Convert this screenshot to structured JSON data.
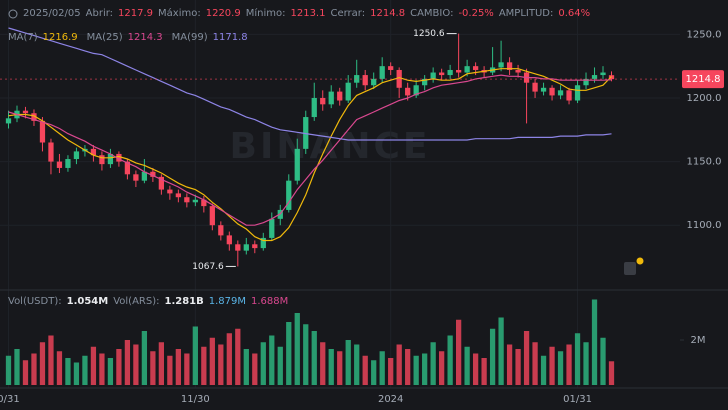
{
  "header": {
    "date": "2025/02/05",
    "labels": [
      "Abrir:",
      "Máximo:",
      "Mínimo:",
      "Cerrar:",
      "CAMBIO:",
      "AMPLITUD:"
    ],
    "change": "-0.25%",
    "amplitude": "0.64%"
  },
  "watermark": "BINANCE",
  "chart_data": {
    "type": "candlestick",
    "xlim": [
      -1,
      72
    ],
    "xticks": [
      {
        "value": 0,
        "label": "0/31"
      },
      {
        "value": 22,
        "label": "11/30"
      },
      {
        "value": 45,
        "label": "2024"
      },
      {
        "value": 67,
        "label": "01/31"
      }
    ],
    "ylim": [
      1053,
      1277
    ],
    "yticks": [
      {
        "value": 1100,
        "label": "1100.0"
      },
      {
        "value": 1150,
        "label": "1150.0"
      },
      {
        "value": 1200,
        "label": "1200.0"
      },
      {
        "value": 1250,
        "label": "1250.0"
      }
    ],
    "grid": true,
    "up_color": "#2ebd85",
    "down_color": "#f6465d",
    "open": [
      1180,
      1184,
      1190,
      1188,
      1182,
      1165,
      1150,
      1145,
      1152,
      1158,
      1160,
      1155,
      1148,
      1156,
      1150,
      1140,
      1135,
      1142,
      1138,
      1128,
      1125,
      1122,
      1118,
      1120,
      1115,
      1100,
      1092,
      1085,
      1080,
      1085,
      1082,
      1090,
      1105,
      1112,
      1135,
      1160,
      1185,
      1200,
      1195,
      1205,
      1198,
      1212,
      1218,
      1210,
      1215,
      1225,
      1222,
      1208,
      1202,
      1210,
      1215,
      1220,
      1218,
      1222,
      1220,
      1225,
      1222,
      1220,
      1224,
      1228,
      1222,
      1220,
      1212,
      1205,
      1208,
      1202,
      1206,
      1198,
      1210,
      1215,
      1218,
      1217.9
    ],
    "high": [
      1190,
      1194,
      1193,
      1191,
      1185,
      1168,
      1156,
      1155,
      1161,
      1163,
      1163,
      1158,
      1160,
      1158,
      1152,
      1143,
      1152,
      1145,
      1140,
      1131,
      1128,
      1125,
      1124,
      1123,
      1117,
      1103,
      1095,
      1088,
      1090,
      1088,
      1094,
      1110,
      1116,
      1140,
      1168,
      1190,
      1212,
      1206,
      1210,
      1208,
      1218,
      1230,
      1222,
      1220,
      1232,
      1228,
      1224,
      1212,
      1214,
      1218,
      1224,
      1223,
      1226,
      1250.6,
      1230,
      1228,
      1225,
      1240,
      1245,
      1232,
      1226,
      1223,
      1215,
      1212,
      1210,
      1210,
      1208,
      1214,
      1220,
      1224,
      1225,
      1220.9
    ],
    "low": [
      1176,
      1181,
      1184,
      1178,
      1158,
      1140,
      1141,
      1142,
      1148,
      1154,
      1150,
      1143,
      1145,
      1146,
      1136,
      1130,
      1133,
      1134,
      1124,
      1120,
      1118,
      1114,
      1115,
      1110,
      1096,
      1088,
      1080,
      1067.6,
      1077,
      1078,
      1080,
      1088,
      1100,
      1110,
      1132,
      1156,
      1182,
      1190,
      1192,
      1194,
      1196,
      1208,
      1206,
      1207,
      1212,
      1218,
      1200,
      1198,
      1200,
      1206,
      1212,
      1214,
      1215,
      1216,
      1217,
      1218,
      1216,
      1218,
      1221,
      1218,
      1216,
      1180,
      1200,
      1202,
      1198,
      1199,
      1195,
      1196,
      1207,
      1212,
      1215,
      1213.1
    ],
    "close": [
      1184,
      1190,
      1188,
      1182,
      1165,
      1150,
      1145,
      1152,
      1158,
      1160,
      1155,
      1148,
      1156,
      1150,
      1140,
      1135,
      1142,
      1138,
      1128,
      1125,
      1122,
      1118,
      1120,
      1115,
      1100,
      1092,
      1085,
      1080,
      1085,
      1082,
      1090,
      1105,
      1112,
      1135,
      1160,
      1185,
      1200,
      1195,
      1205,
      1198,
      1212,
      1218,
      1210,
      1215,
      1225,
      1222,
      1208,
      1202,
      1210,
      1215,
      1220,
      1218,
      1222,
      1220,
      1225,
      1222,
      1220,
      1224,
      1228,
      1222,
      1220,
      1212,
      1205,
      1208,
      1202,
      1206,
      1198,
      1210,
      1215,
      1218,
      1220,
      1214.8
    ],
    "series": [
      {
        "name": "MA(7)",
        "color": "#f0b90b",
        "values": [
          1186,
          1187,
          1187,
          1186,
          1182,
          1177,
          1172,
          1167,
          1163,
          1159,
          1155,
          1153,
          1153,
          1154,
          1152,
          1149,
          1147,
          1144,
          1141,
          1137,
          1133,
          1130,
          1128,
          1124,
          1118,
          1113,
          1107,
          1101,
          1097,
          1091,
          1088,
          1088,
          1091,
          1098,
          1110,
          1124,
          1141,
          1156,
          1170,
          1183,
          1194,
          1202,
          1205,
          1208,
          1212,
          1214,
          1216,
          1214,
          1213,
          1214,
          1215,
          1214,
          1214,
          1215,
          1219,
          1220,
          1221,
          1222,
          1223,
          1223,
          1223,
          1221,
          1219,
          1217,
          1214,
          1211,
          1207,
          1206,
          1206,
          1208,
          1210,
          1216.9
        ]
      },
      {
        "name": "MA(25)",
        "color": "#d9488f",
        "values": [
          1189,
          1187,
          1185,
          1183,
          1181,
          1179,
          1176,
          1172,
          1169,
          1166,
          1162,
          1159,
          1156,
          1152,
          1149,
          1146,
          1142,
          1139,
          1136,
          1133,
          1130,
          1126,
          1123,
          1120,
          1116,
          1112,
          1108,
          1104,
          1100,
          1100,
          1102,
          1105,
          1109,
          1118,
          1128,
          1136,
          1144,
          1151,
          1159,
          1167,
          1175,
          1183,
          1186,
          1189,
          1192,
          1195,
          1198,
          1200,
          1203,
          1205,
          1208,
          1210,
          1211,
          1212,
          1213,
          1215,
          1216,
          1217,
          1218,
          1217,
          1217,
          1216,
          1216,
          1215,
          1215,
          1214,
          1214,
          1214,
          1214,
          1214,
          1214,
          1214.3
        ]
      },
      {
        "name": "MA(99)",
        "color": "#8d84e6",
        "values": [
          1255,
          1253,
          1251,
          1249,
          1247,
          1245,
          1243,
          1241,
          1239,
          1237,
          1235,
          1234,
          1231,
          1228,
          1225,
          1222,
          1219,
          1216,
          1213,
          1210,
          1207,
          1204,
          1202,
          1199,
          1196,
          1193,
          1191,
          1188,
          1185,
          1183,
          1180,
          1177,
          1175,
          1174,
          1173,
          1172,
          1171,
          1170,
          1169,
          1168,
          1167,
          1167,
          1167,
          1167,
          1167,
          1167,
          1167,
          1167,
          1167,
          1167,
          1167,
          1167,
          1167,
          1167,
          1167,
          1168,
          1168,
          1168,
          1168,
          1168,
          1169,
          1169,
          1169,
          1169,
          1169,
          1170,
          1170,
          1170,
          1171,
          1171,
          1171,
          1171.8
        ]
      }
    ],
    "volume": {
      "ylim": [
        0,
        4000000
      ],
      "yticks": [
        {
          "value": 2000000,
          "label": "2M"
        }
      ],
      "header": [
        {
          "label": "Vol(USDT):",
          "value": "1.054M"
        },
        {
          "label": "Vol(ARS):",
          "value": "1.281B"
        }
      ],
      "ma_labels": [
        {
          "text": "1.879M",
          "color": "#5ab4e6"
        },
        {
          "text": "1.688M",
          "color": "#d9488f"
        }
      ],
      "values": [
        1300000,
        1600000,
        1100000,
        1400000,
        1900000,
        2200000,
        1500000,
        1200000,
        1000000,
        1300000,
        1700000,
        1400000,
        1200000,
        1600000,
        2000000,
        1800000,
        2400000,
        1500000,
        1900000,
        1300000,
        1600000,
        1400000,
        2600000,
        1700000,
        2100000,
        1800000,
        2300000,
        2500000,
        1600000,
        1400000,
        1900000,
        2200000,
        1700000,
        2800000,
        3200000,
        2700000,
        2400000,
        1900000,
        1600000,
        1500000,
        2000000,
        1800000,
        1300000,
        1100000,
        1500000,
        1200000,
        1800000,
        1600000,
        1300000,
        1400000,
        1900000,
        1500000,
        2200000,
        2900000,
        1700000,
        1400000,
        1200000,
        2500000,
        3000000,
        1800000,
        1600000,
        2400000,
        1900000,
        1300000,
        1700000,
        1500000,
        1800000,
        2300000,
        1900000,
        3800000,
        2100000,
        1054000
      ]
    }
  }
}
